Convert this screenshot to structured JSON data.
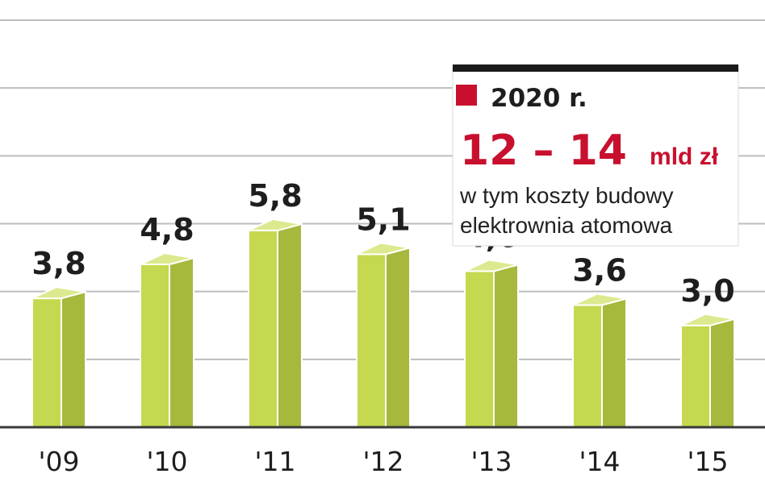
{
  "chart_data": {
    "type": "bar",
    "categories": [
      "'09",
      "'10",
      "'11",
      "'12",
      "'13",
      "'14",
      "'15"
    ],
    "values": [
      3.8,
      4.8,
      5.8,
      5.1,
      4.6,
      3.6,
      3.0
    ],
    "value_labels": [
      "3,8",
      "4,8",
      "5,8",
      "5,1",
      "4,6",
      "3,6",
      "3,0"
    ],
    "ylim": [
      0,
      12
    ],
    "grid": true,
    "colors": {
      "bar_front": "#c6d84f",
      "bar_side": "#a7b83c",
      "bar_top": "#dde98e",
      "grid": "#bdbdbd",
      "axis": "#3a3a3a"
    },
    "callout": {
      "marker_color": "#c8102e",
      "year": "2020 r.",
      "value": "12 – 14",
      "unit": "mld zł",
      "line1": "w tym koszty budowy",
      "line2": "elektrownia atomowa"
    }
  }
}
